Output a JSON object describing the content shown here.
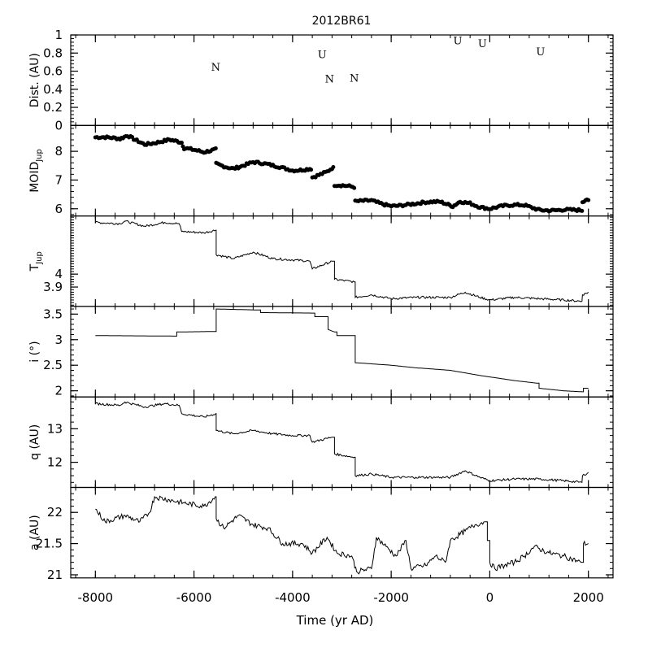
{
  "chart_data": {
    "type": "line",
    "title": "2012BR61",
    "xlabel": "Time (yr AD)",
    "xlim": [
      -8500,
      2500
    ],
    "xticks": [
      -8000,
      -6000,
      -4000,
      -2000,
      0,
      2000
    ],
    "xtick_labels": [
      "-8000",
      "-6000",
      "-4000",
      "-2000",
      "0",
      "2000"
    ],
    "panels": [
      {
        "id": "dist",
        "ylabel": "Dist. (AU)",
        "ylim": [
          0,
          1
        ],
        "yticks": [
          0,
          0.2,
          0.4,
          0.6,
          0.8,
          1
        ],
        "ytick_labels": [
          "0",
          "0.2",
          "0.4",
          "0.6",
          "0.8",
          "1"
        ],
        "style": "annotations",
        "annotations": [
          {
            "x": -5560,
            "y": 0.65,
            "label": "N"
          },
          {
            "x": -3400,
            "y": 0.79,
            "label": "U"
          },
          {
            "x": -3250,
            "y": 0.52,
            "label": "N"
          },
          {
            "x": -2750,
            "y": 0.53,
            "label": "N"
          },
          {
            "x": -650,
            "y": 0.94,
            "label": "U"
          },
          {
            "x": -150,
            "y": 0.91,
            "label": "U"
          },
          {
            "x": 1030,
            "y": 0.82,
            "label": "U"
          }
        ]
      },
      {
        "id": "moid",
        "ylabel": "MOID",
        "ylabel_sub": "Jup",
        "ylim": [
          5.75,
          8.9
        ],
        "yticks": [
          6,
          7,
          8
        ],
        "ytick_labels": [
          "6",
          "7",
          "8"
        ],
        "style": "dots",
        "points": [
          [
            -8000,
            8.45
          ],
          [
            -7500,
            8.4
          ],
          [
            -7350,
            8.55
          ],
          [
            -7000,
            8.3
          ],
          [
            -6500,
            8.4
          ],
          [
            -6250,
            8.25
          ],
          [
            -6200,
            8.05
          ],
          [
            -5800,
            7.95
          ],
          [
            -5560,
            8.1
          ],
          [
            -5550,
            7.6
          ],
          [
            -5200,
            7.45
          ],
          [
            -4800,
            7.6
          ],
          [
            -4400,
            7.45
          ],
          [
            -4000,
            7.35
          ],
          [
            -3650,
            7.45
          ],
          [
            -3600,
            7.15
          ],
          [
            -3300,
            7.3
          ],
          [
            -3200,
            7.4
          ],
          [
            -3150,
            6.8
          ],
          [
            -2750,
            6.7
          ],
          [
            -2730,
            6.2
          ],
          [
            -2400,
            6.3
          ],
          [
            -2000,
            6.15
          ],
          [
            -1500,
            6.15
          ],
          [
            -1000,
            6.2
          ],
          [
            -750,
            6.1
          ],
          [
            -600,
            6.3
          ],
          [
            -400,
            6.25
          ],
          [
            -200,
            6.1
          ],
          [
            0,
            6.0
          ],
          [
            300,
            6.05
          ],
          [
            700,
            6.1
          ],
          [
            1000,
            6.0
          ],
          [
            1500,
            6.0
          ],
          [
            1870,
            5.9
          ],
          [
            1880,
            6.2
          ],
          [
            2000,
            6.3
          ]
        ]
      },
      {
        "id": "tjup",
        "ylabel": "T",
        "ylabel_sub": "Jup",
        "ylim": [
          3.75,
          4.45
        ],
        "yticks": [
          3.9,
          4
        ],
        "ytick_labels": [
          "3.9",
          "4"
        ],
        "style": "noisy",
        "points": [
          [
            -8000,
            4.4
          ],
          [
            -7500,
            4.39
          ],
          [
            -7400,
            4.41
          ],
          [
            -7000,
            4.37
          ],
          [
            -6600,
            4.4
          ],
          [
            -6300,
            4.39
          ],
          [
            -6250,
            4.33
          ],
          [
            -5800,
            4.32
          ],
          [
            -5560,
            4.34
          ],
          [
            -5550,
            4.15
          ],
          [
            -5200,
            4.12
          ],
          [
            -4800,
            4.17
          ],
          [
            -4400,
            4.12
          ],
          [
            -4000,
            4.11
          ],
          [
            -3650,
            4.1
          ],
          [
            -3600,
            4.04
          ],
          [
            -3200,
            4.1
          ],
          [
            -3150,
            3.96
          ],
          [
            -2750,
            3.94
          ],
          [
            -2730,
            3.82
          ],
          [
            -2400,
            3.84
          ],
          [
            -2000,
            3.81
          ],
          [
            -1500,
            3.82
          ],
          [
            -1000,
            3.82
          ],
          [
            -800,
            3.82
          ],
          [
            -500,
            3.86
          ],
          [
            -200,
            3.82
          ],
          [
            0,
            3.8
          ],
          [
            500,
            3.82
          ],
          [
            1000,
            3.81
          ],
          [
            1500,
            3.8
          ],
          [
            1870,
            3.79
          ],
          [
            1880,
            3.84
          ],
          [
            2000,
            3.86
          ]
        ]
      },
      {
        "id": "incl",
        "ylabel": "i (°)",
        "ylim": [
          1.88,
          3.65
        ],
        "yticks": [
          2,
          2.5,
          3,
          3.5
        ],
        "ytick_labels": [
          "2",
          "2.5",
          "3",
          "3.5"
        ],
        "style": "steps",
        "points": [
          [
            -8000,
            3.08
          ],
          [
            -6400,
            3.07
          ],
          [
            -6350,
            3.15
          ],
          [
            -5600,
            3.16
          ],
          [
            -5550,
            3.6
          ],
          [
            -4700,
            3.58
          ],
          [
            -4650,
            3.53
          ],
          [
            -3600,
            3.52
          ],
          [
            -3550,
            3.45
          ],
          [
            -3300,
            3.45
          ],
          [
            -3280,
            3.2
          ],
          [
            -3150,
            3.15
          ],
          [
            -3100,
            3.08
          ],
          [
            -2750,
            3.08
          ],
          [
            -2730,
            2.55
          ],
          [
            -2000,
            2.5
          ],
          [
            -1500,
            2.45
          ],
          [
            -800,
            2.4
          ],
          [
            -200,
            2.3
          ],
          [
            500,
            2.2
          ],
          [
            950,
            2.15
          ],
          [
            1000,
            2.05
          ],
          [
            1500,
            2.0
          ],
          [
            1870,
            1.98
          ],
          [
            1900,
            2.05
          ],
          [
            2000,
            2.05
          ]
        ]
      },
      {
        "id": "q",
        "ylabel": "q (AU)",
        "ylim": [
          11.25,
          13.95
        ],
        "yticks": [
          12,
          13
        ],
        "ytick_labels": [
          "12",
          "13"
        ],
        "style": "noisy",
        "points": [
          [
            -8000,
            13.75
          ],
          [
            -7500,
            13.7
          ],
          [
            -7400,
            13.8
          ],
          [
            -7000,
            13.65
          ],
          [
            -6600,
            13.75
          ],
          [
            -6300,
            13.7
          ],
          [
            -6250,
            13.45
          ],
          [
            -5800,
            13.35
          ],
          [
            -5560,
            13.45
          ],
          [
            -5550,
            12.95
          ],
          [
            -5200,
            12.85
          ],
          [
            -4800,
            12.95
          ],
          [
            -4400,
            12.85
          ],
          [
            -4000,
            12.8
          ],
          [
            -3650,
            12.8
          ],
          [
            -3600,
            12.6
          ],
          [
            -3200,
            12.75
          ],
          [
            -3150,
            12.25
          ],
          [
            -2750,
            12.15
          ],
          [
            -2730,
            11.6
          ],
          [
            -2400,
            11.65
          ],
          [
            -2000,
            11.55
          ],
          [
            -1500,
            11.55
          ],
          [
            -1000,
            11.55
          ],
          [
            -800,
            11.55
          ],
          [
            -500,
            11.75
          ],
          [
            -200,
            11.55
          ],
          [
            0,
            11.45
          ],
          [
            500,
            11.5
          ],
          [
            1000,
            11.5
          ],
          [
            1500,
            11.45
          ],
          [
            1870,
            11.4
          ],
          [
            1880,
            11.6
          ],
          [
            2000,
            11.7
          ]
        ]
      },
      {
        "id": "a",
        "ylabel": "a (AU)",
        "ylim": [
          20.95,
          22.4
        ],
        "yticks": [
          21,
          21.5,
          22
        ],
        "ytick_labels": [
          "21",
          "21.5",
          "22"
        ],
        "style": "noisy",
        "points": [
          [
            -8000,
            22.05
          ],
          [
            -7800,
            21.85
          ],
          [
            -7400,
            21.95
          ],
          [
            -7100,
            21.85
          ],
          [
            -6900,
            22.0
          ],
          [
            -6800,
            22.25
          ],
          [
            -6500,
            22.2
          ],
          [
            -6200,
            22.15
          ],
          [
            -5800,
            22.1
          ],
          [
            -5570,
            22.25
          ],
          [
            -5550,
            21.9
          ],
          [
            -5400,
            21.75
          ],
          [
            -5100,
            21.95
          ],
          [
            -4800,
            21.8
          ],
          [
            -4500,
            21.75
          ],
          [
            -4200,
            21.5
          ],
          [
            -3800,
            21.5
          ],
          [
            -3600,
            21.35
          ],
          [
            -3300,
            21.6
          ],
          [
            -3100,
            21.35
          ],
          [
            -2800,
            21.3
          ],
          [
            -2700,
            21.05
          ],
          [
            -2400,
            21.1
          ],
          [
            -2300,
            21.6
          ],
          [
            -2100,
            21.45
          ],
          [
            -1900,
            21.3
          ],
          [
            -1700,
            21.55
          ],
          [
            -1600,
            21.1
          ],
          [
            -1300,
            21.15
          ],
          [
            -1100,
            21.3
          ],
          [
            -900,
            21.2
          ],
          [
            -800,
            21.55
          ],
          [
            -500,
            21.7
          ],
          [
            -300,
            21.8
          ],
          [
            -100,
            21.85
          ],
          [
            -50,
            21.55
          ],
          [
            0,
            21.2
          ],
          [
            100,
            21.1
          ],
          [
            300,
            21.15
          ],
          [
            500,
            21.2
          ],
          [
            700,
            21.3
          ],
          [
            900,
            21.45
          ],
          [
            1200,
            21.35
          ],
          [
            1500,
            21.3
          ],
          [
            1850,
            21.2
          ],
          [
            1900,
            21.5
          ],
          [
            2000,
            21.5
          ]
        ]
      }
    ]
  }
}
